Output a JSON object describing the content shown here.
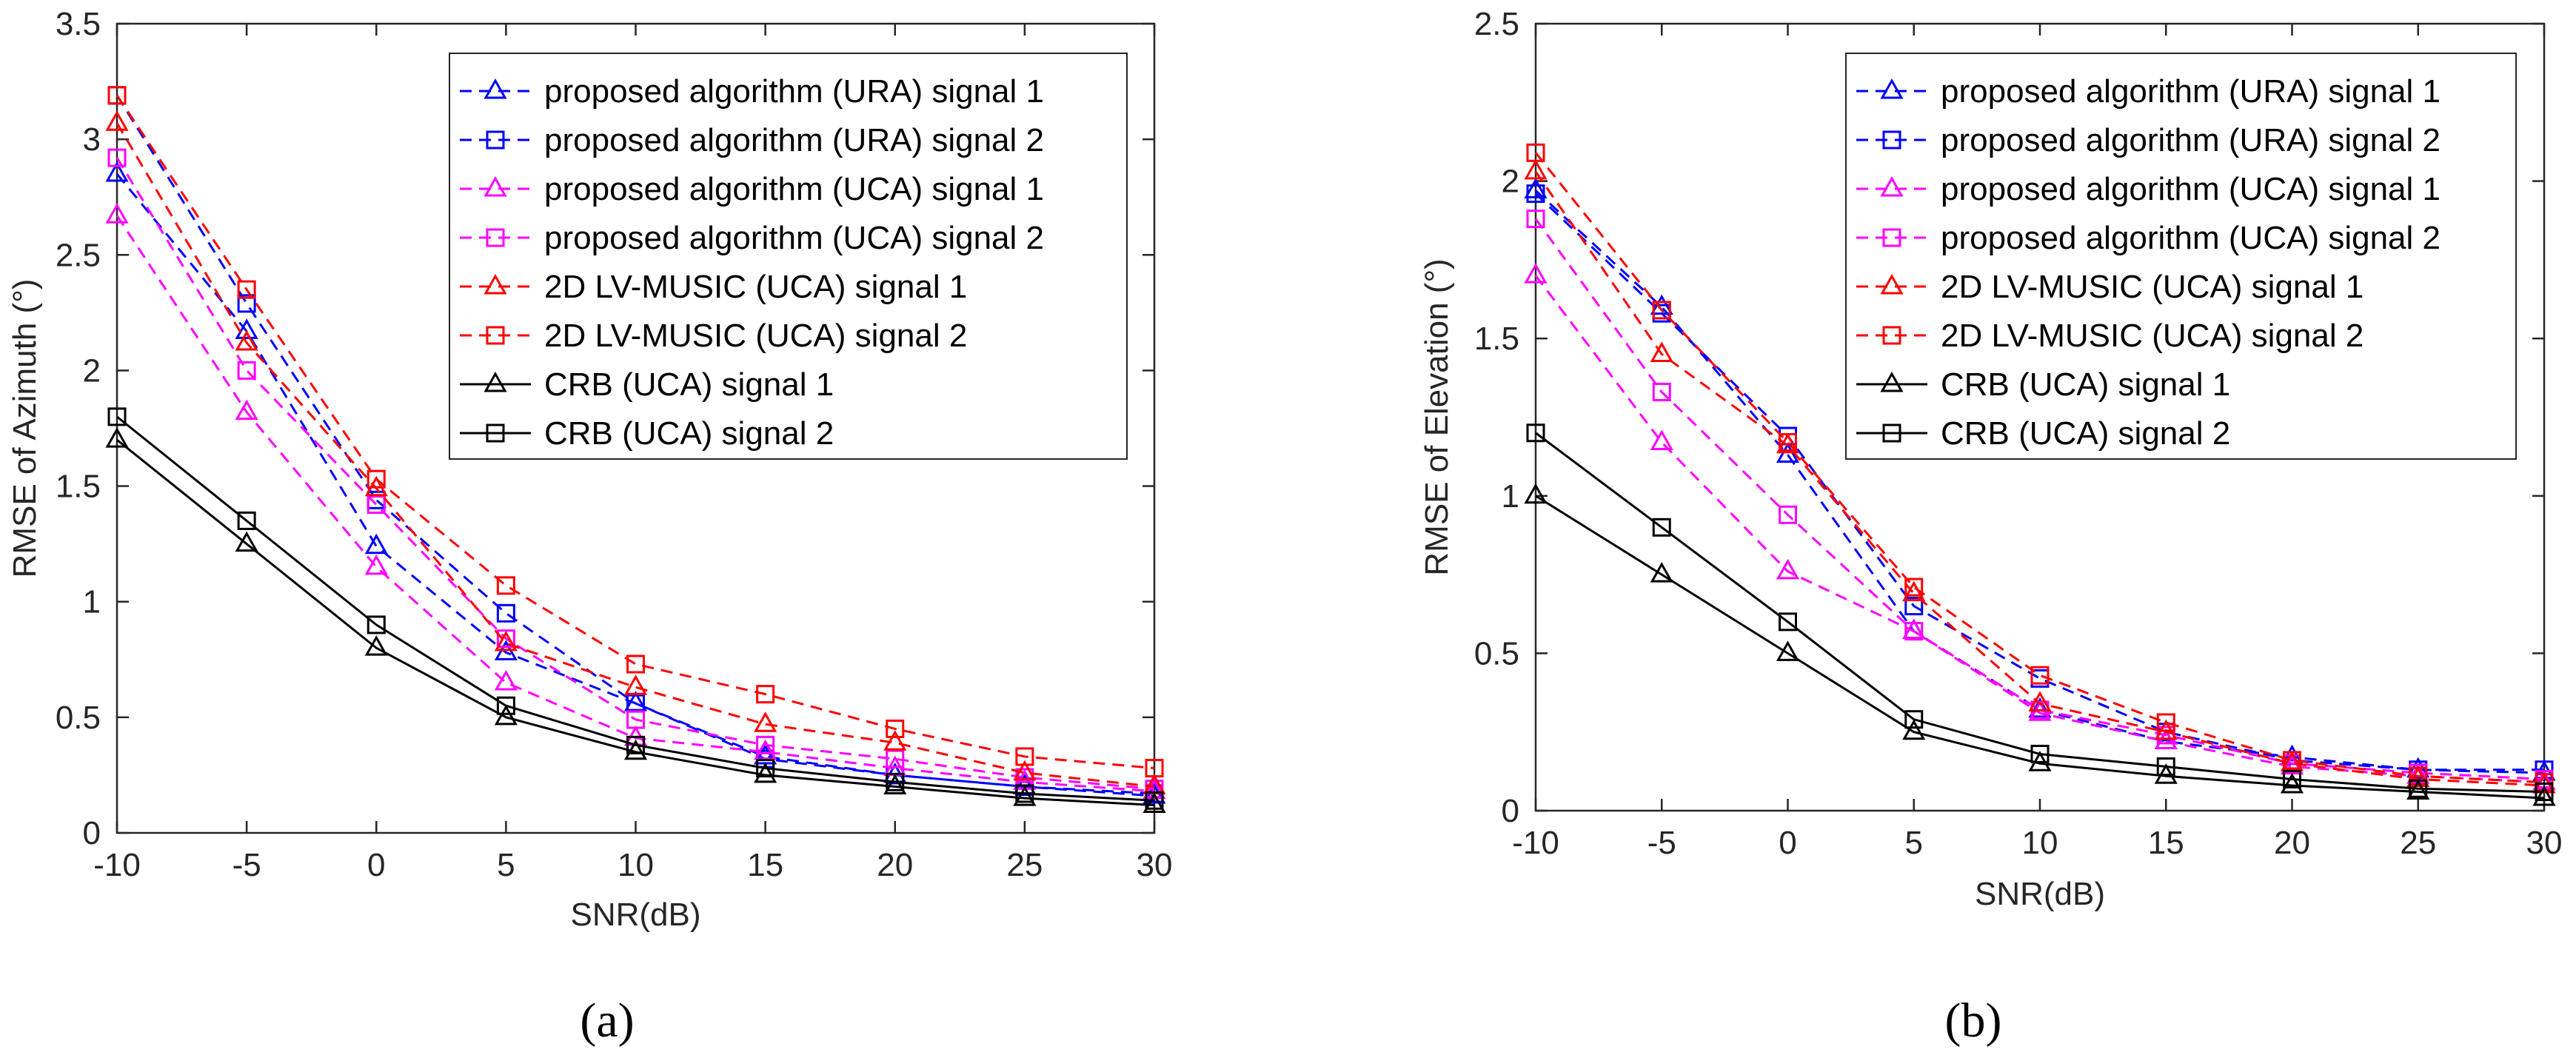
{
  "chart_data": [
    {
      "type": "line",
      "panel_label": "(a)",
      "xlabel": "SNR(dB)",
      "ylabel": "RMSE of Azimuth (°)",
      "xlim": [
        -10,
        30
      ],
      "ylim": [
        0,
        3.5
      ],
      "x_ticks": [
        -10,
        -5,
        0,
        5,
        10,
        15,
        20,
        25,
        30
      ],
      "y_ticks": [
        0,
        0.5,
        1,
        1.5,
        2,
        2.5,
        3,
        3.5
      ],
      "x_tick_labels": [
        "-10",
        "-5",
        "0",
        "5",
        "10",
        "15",
        "20",
        "25",
        "30"
      ],
      "y_tick_labels": [
        "0",
        "0.5",
        "1",
        "1.5",
        "2",
        "2.5",
        "3",
        "3.5"
      ],
      "grid": false,
      "legend_position": "top-right",
      "x": [
        -10,
        -5,
        0,
        5,
        10,
        15,
        20,
        25,
        30
      ],
      "series": [
        {
          "name": "proposed algorithm (URA) signal 1",
          "color": "#0000ff",
          "marker": "triangle",
          "dashed": true,
          "values": [
            2.85,
            2.17,
            1.24,
            0.78,
            0.56,
            0.33,
            0.25,
            0.2,
            0.16
          ]
        },
        {
          "name": "proposed algorithm (URA) signal 2",
          "color": "#0000ff",
          "marker": "square",
          "dashed": true,
          "values": [
            3.19,
            2.29,
            1.44,
            0.95,
            0.56,
            0.32,
            0.25,
            0.2,
            0.17
          ]
        },
        {
          "name": "proposed algorithm (UCA) signal 1",
          "color": "#ff00ff",
          "marker": "triangle",
          "dashed": true,
          "values": [
            2.67,
            1.82,
            1.15,
            0.65,
            0.41,
            0.35,
            0.28,
            0.22,
            0.18
          ]
        },
        {
          "name": "proposed algorithm (UCA) signal 2",
          "color": "#ff00ff",
          "marker": "square",
          "dashed": true,
          "values": [
            2.92,
            2.0,
            1.42,
            0.84,
            0.49,
            0.38,
            0.32,
            0.24,
            0.19
          ]
        },
        {
          "name": "2D LV-MUSIC (UCA) signal 1",
          "color": "#ff0000",
          "marker": "triangle",
          "dashed": true,
          "values": [
            3.07,
            2.12,
            1.49,
            0.82,
            0.63,
            0.47,
            0.39,
            0.26,
            0.2
          ]
        },
        {
          "name": "2D LV-MUSIC (UCA) signal 2",
          "color": "#ff0000",
          "marker": "square",
          "dashed": true,
          "values": [
            3.19,
            2.35,
            1.53,
            1.07,
            0.73,
            0.6,
            0.45,
            0.33,
            0.28
          ]
        },
        {
          "name": "CRB (UCA) signal 1",
          "color": "#000000",
          "marker": "triangle",
          "dashed": false,
          "values": [
            1.7,
            1.25,
            0.8,
            0.5,
            0.35,
            0.25,
            0.2,
            0.15,
            0.12
          ]
        },
        {
          "name": "CRB (UCA) signal 2",
          "color": "#000000",
          "marker": "square",
          "dashed": false,
          "values": [
            1.8,
            1.35,
            0.9,
            0.55,
            0.38,
            0.28,
            0.22,
            0.17,
            0.14
          ]
        }
      ]
    },
    {
      "type": "line",
      "panel_label": "(b)",
      "xlabel": "SNR(dB)",
      "ylabel": "RMSE of Elevation (°)",
      "xlim": [
        -10,
        30
      ],
      "ylim": [
        0,
        2.5
      ],
      "x_ticks": [
        -10,
        -5,
        0,
        5,
        10,
        15,
        20,
        25,
        30
      ],
      "y_ticks": [
        0,
        0.5,
        1,
        1.5,
        2,
        2.5
      ],
      "x_tick_labels": [
        "-10",
        "-5",
        "0",
        "5",
        "10",
        "15",
        "20",
        "25",
        "30"
      ],
      "y_tick_labels": [
        "0",
        "0.5",
        "1",
        "1.5",
        "2",
        "2.5"
      ],
      "grid": false,
      "legend_position": "top-right",
      "x": [
        -10,
        -5,
        0,
        5,
        10,
        15,
        20,
        25,
        30
      ],
      "series": [
        {
          "name": "proposed algorithm (URA) signal 1",
          "color": "#0000ff",
          "marker": "triangle",
          "dashed": true,
          "values": [
            1.97,
            1.6,
            1.13,
            0.57,
            0.32,
            0.22,
            0.17,
            0.13,
            0.12
          ]
        },
        {
          "name": "proposed algorithm (URA) signal 2",
          "color": "#0000ff",
          "marker": "square",
          "dashed": true,
          "values": [
            1.96,
            1.58,
            1.19,
            0.65,
            0.42,
            0.25,
            0.16,
            0.13,
            0.13
          ]
        },
        {
          "name": "proposed algorithm (UCA) signal 1",
          "color": "#ff00ff",
          "marker": "triangle",
          "dashed": true,
          "values": [
            1.7,
            1.17,
            0.76,
            0.57,
            0.31,
            0.22,
            0.14,
            0.11,
            0.09
          ]
        },
        {
          "name": "proposed algorithm (UCA) signal 2",
          "color": "#ff00ff",
          "marker": "square",
          "dashed": true,
          "values": [
            1.88,
            1.33,
            0.94,
            0.57,
            0.32,
            0.24,
            0.15,
            0.12,
            0.1
          ]
        },
        {
          "name": "2D LV-MUSIC (UCA) signal 1",
          "color": "#ff0000",
          "marker": "triangle",
          "dashed": true,
          "values": [
            2.03,
            1.45,
            1.16,
            0.69,
            0.34,
            0.25,
            0.15,
            0.1,
            0.08
          ]
        },
        {
          "name": "2D LV-MUSIC (UCA) signal 2",
          "color": "#ff0000",
          "marker": "square",
          "dashed": true,
          "values": [
            2.09,
            1.59,
            1.17,
            0.71,
            0.43,
            0.28,
            0.16,
            0.11,
            0.09
          ]
        },
        {
          "name": "CRB (UCA) signal 1",
          "color": "#000000",
          "marker": "triangle",
          "dashed": false,
          "values": [
            1.0,
            0.75,
            0.5,
            0.25,
            0.15,
            0.11,
            0.08,
            0.06,
            0.04
          ]
        },
        {
          "name": "CRB (UCA) signal 2",
          "color": "#000000",
          "marker": "square",
          "dashed": false,
          "values": [
            1.2,
            0.9,
            0.6,
            0.29,
            0.18,
            0.14,
            0.1,
            0.07,
            0.06
          ]
        }
      ]
    }
  ]
}
